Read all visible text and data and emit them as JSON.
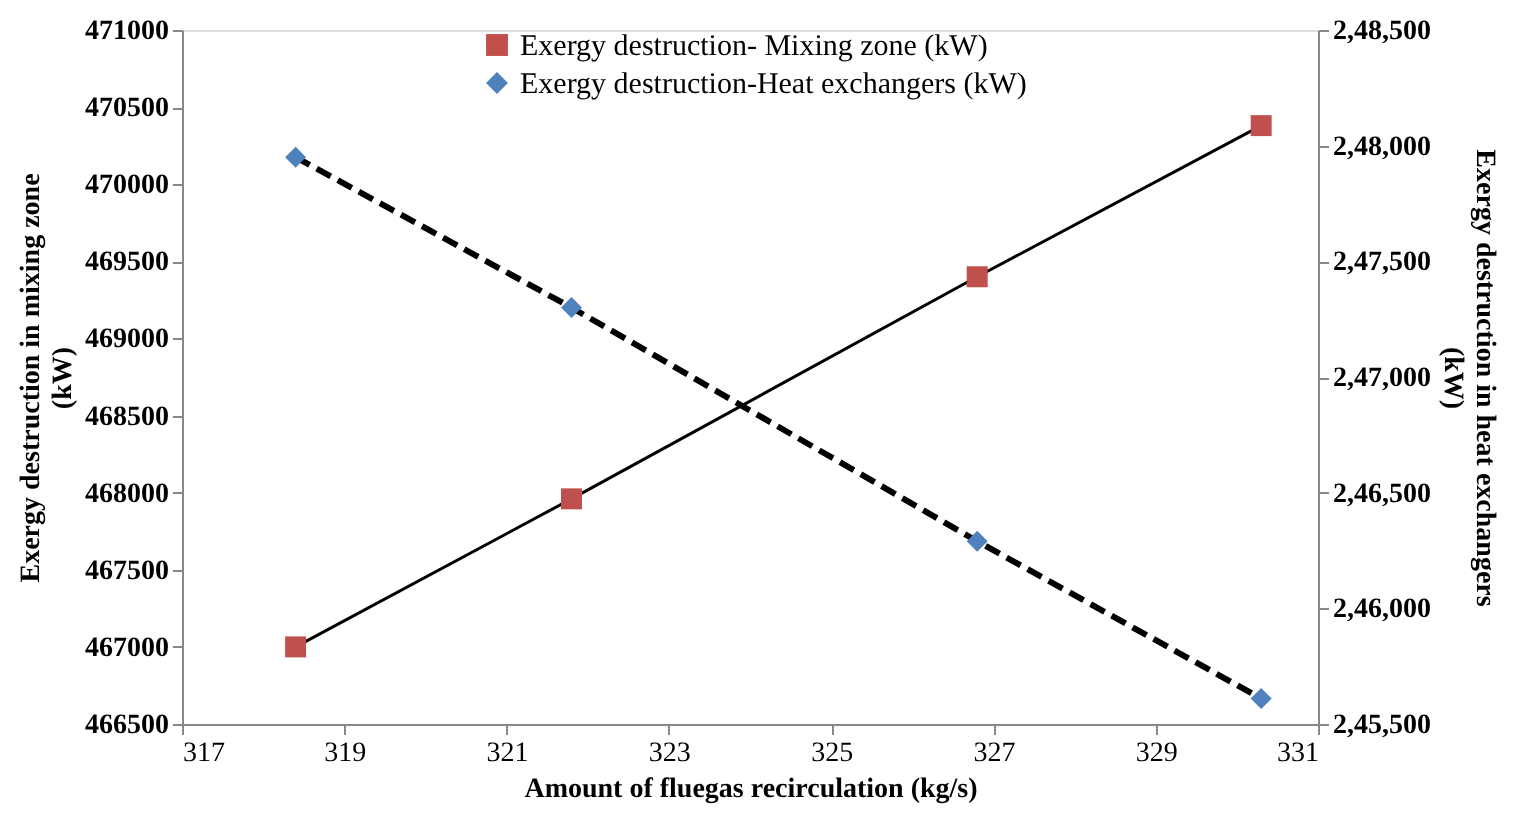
{
  "chart_data": {
    "type": "line",
    "xlabel": "Amount of fluegas recirculation (kg/s)",
    "ylabel": "Exergy destruction  in mixing zone\n(kW)",
    "y2label": "Exergy destruction in heat exchangers\n(kW)",
    "x": [
      318.4,
      321.8,
      326.8,
      330.3
    ],
    "series": [
      {
        "name": "Exergy destruction- Mixing zone (kW)",
        "color": "#c0504d",
        "values": [
          467000,
          467960,
          469400,
          470380
        ],
        "marker": "square",
        "line_style": "solid"
      },
      {
        "name": "Exergy destruction-Heat exchangers (kW)",
        "color": "#4f81bd",
        "values": [
          247950,
          247300,
          246290,
          245610
        ],
        "axis": "y2",
        "marker": "diamond",
        "line_style": "dashed"
      }
    ],
    "xlim": [
      317,
      331
    ],
    "xticks": [
      317,
      319,
      321,
      323,
      325,
      327,
      329,
      331
    ],
    "ylim": [
      466500,
      471000
    ],
    "yticks": [
      466500,
      467000,
      467500,
      468000,
      468500,
      469000,
      469500,
      470000,
      470500,
      471000
    ],
    "y2lim": [
      245500,
      248500
    ],
    "y2ticks": [
      {
        "value": 245500,
        "label": "2,45,500"
      },
      {
        "value": 246000,
        "label": "2,46,000"
      },
      {
        "value": 246500,
        "label": "2,46,500"
      },
      {
        "value": 247000,
        "label": "2,47,000"
      },
      {
        "value": 247500,
        "label": "2,47,500"
      },
      {
        "value": 248000,
        "label": "2,48,000"
      },
      {
        "value": 248500,
        "label": "2,48,500"
      }
    ],
    "grid": false,
    "legend": "top"
  }
}
